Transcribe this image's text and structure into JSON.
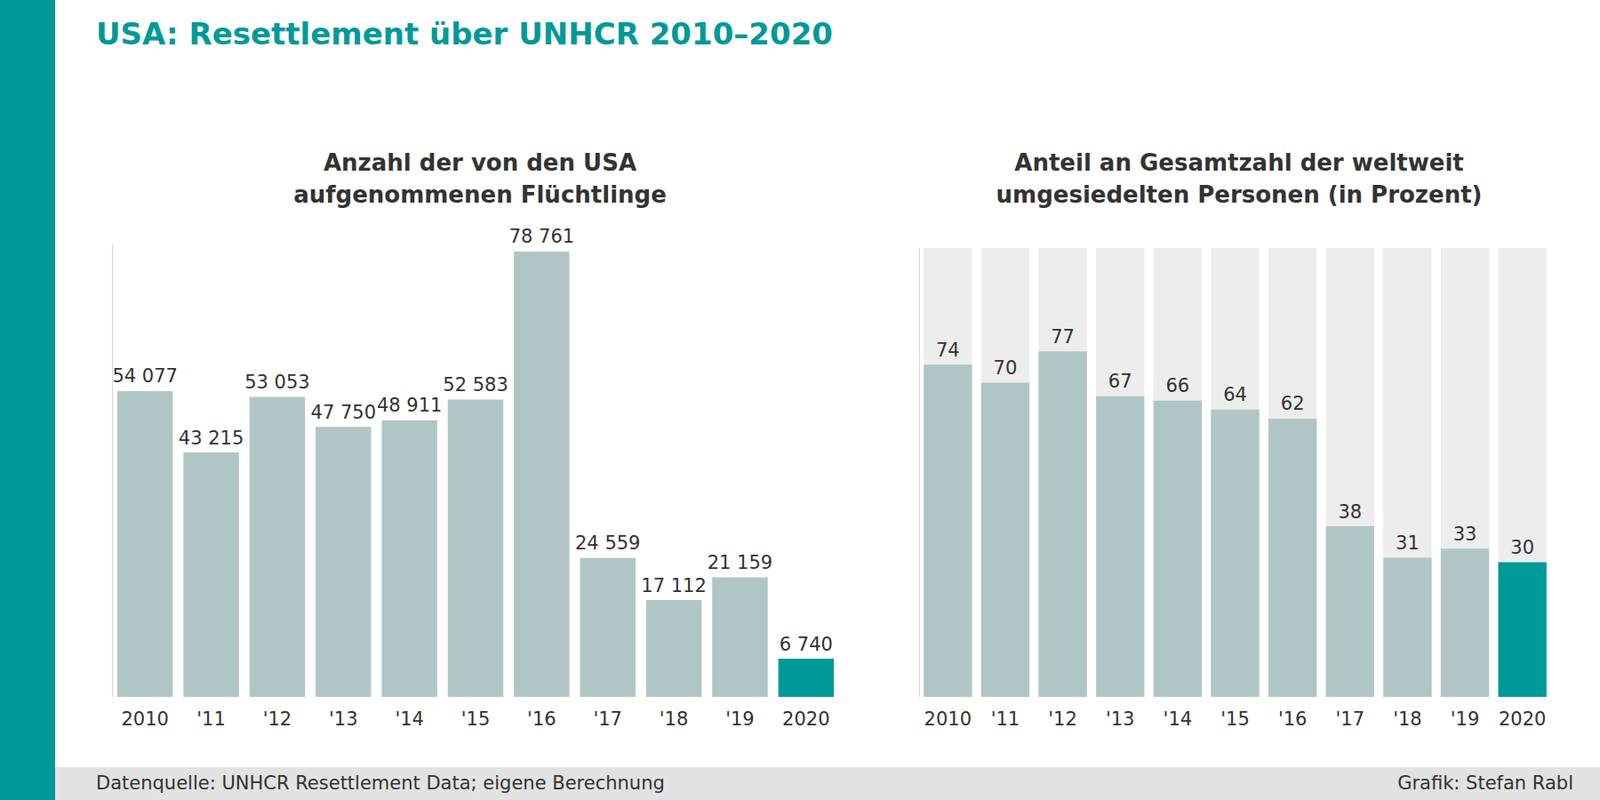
{
  "title": "USA: Resettlement über UNHCR 2010–2020",
  "source": "Datenquelle: UNHCR Resettlement Data; eigene Berechnung",
  "credit": "Grafik: Stefan Rabl",
  "chart_data": [
    {
      "type": "bar",
      "title": "Anzahl der von den USA\naufgenommenen Flüchtlinge",
      "categories": [
        "2010",
        "'11",
        "'12",
        "'13",
        "'14",
        "'15",
        "'16",
        "'17",
        "'18",
        "'19",
        "2020"
      ],
      "values": [
        54077,
        43215,
        53053,
        47750,
        48911,
        52583,
        78761,
        24559,
        17112,
        21159,
        6740
      ],
      "value_labels": [
        "54 077",
        "43 215",
        "53 053",
        "47 750",
        "48 911",
        "52 583",
        "78 761",
        "24 559",
        "17 112",
        "21 159",
        "6 740"
      ],
      "colors": [
        "#b0c6c6",
        "#b0c6c6",
        "#b0c6c6",
        "#b0c6c6",
        "#b0c6c6",
        "#b0c6c6",
        "#b0c6c6",
        "#b0c6c6",
        "#b0c6c6",
        "#b0c6c6",
        "#009999"
      ],
      "ylim": [
        0,
        80000
      ],
      "yticks": [
        0,
        80000
      ],
      "grid": false,
      "data_labels": true,
      "tick_labels": "x"
    },
    {
      "type": "bar",
      "title": "Anteil an Gesamtzahl der weltweit\numgesiedelten Personen (in Prozent)",
      "categories": [
        "2010",
        "'11",
        "'12",
        "'13",
        "'14",
        "'15",
        "'16",
        "'17",
        "'18",
        "'19",
        "2020"
      ],
      "values": [
        74,
        70,
        77,
        67,
        66,
        64,
        62,
        38,
        31,
        33,
        30
      ],
      "colors": [
        "#b0c6c6",
        "#b0c6c6",
        "#b0c6c6",
        "#b0c6c6",
        "#b0c6c6",
        "#b0c6c6",
        "#b0c6c6",
        "#b0c6c6",
        "#b0c6c6",
        "#b0c6c6",
        "#009999"
      ],
      "ylim": [
        0,
        100
      ],
      "yticks": [
        0,
        100
      ],
      "grid": false,
      "data_labels": true,
      "tick_labels": "x"
    }
  ]
}
